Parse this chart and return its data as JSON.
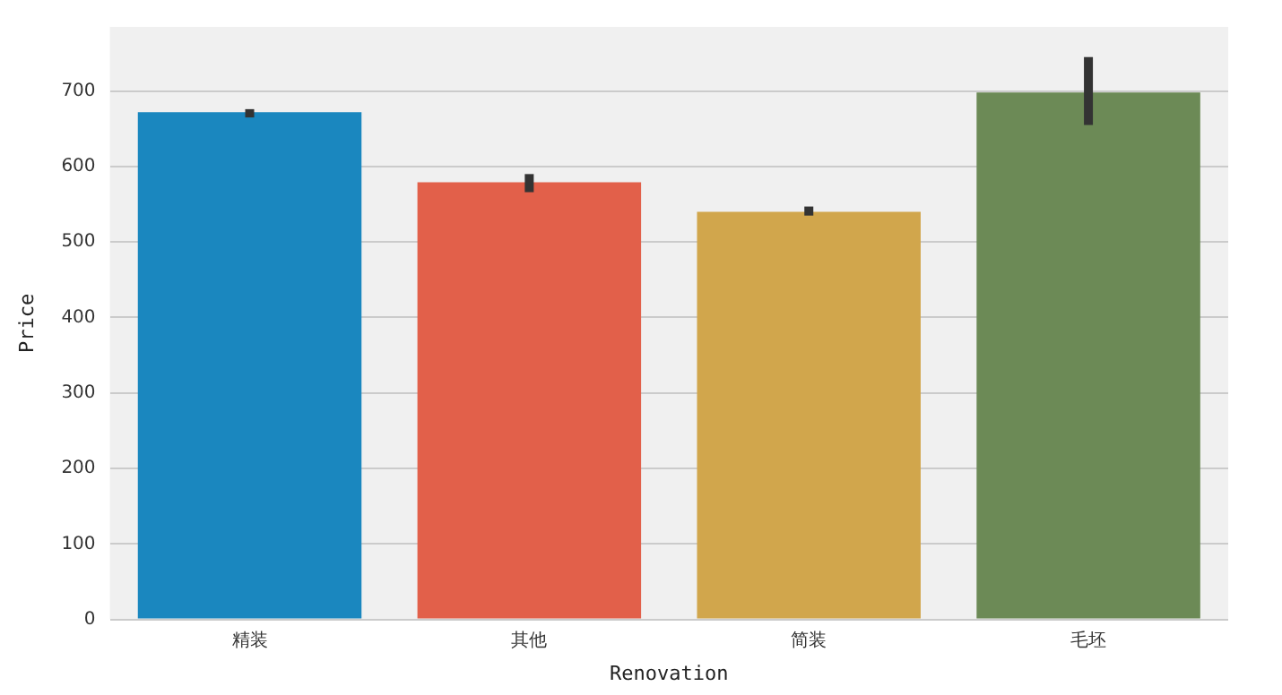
{
  "chart_data": {
    "type": "bar",
    "xlabel": "Renovation",
    "ylabel": "Price",
    "categories": [
      "精装",
      "其他",
      "简装",
      "毛坯"
    ],
    "values": [
      672,
      579,
      540,
      698
    ],
    "errors": [
      [
        665,
        676
      ],
      [
        566,
        590
      ],
      [
        535,
        547
      ],
      [
        655,
        745
      ]
    ],
    "colors": [
      "#1a87bf",
      "#e2604a",
      "#d1a64c",
      "#6c8a56"
    ],
    "ylim": [
      0,
      785
    ],
    "yticks": [
      0,
      100,
      200,
      300,
      400,
      500,
      600,
      700
    ],
    "grid": "y"
  }
}
